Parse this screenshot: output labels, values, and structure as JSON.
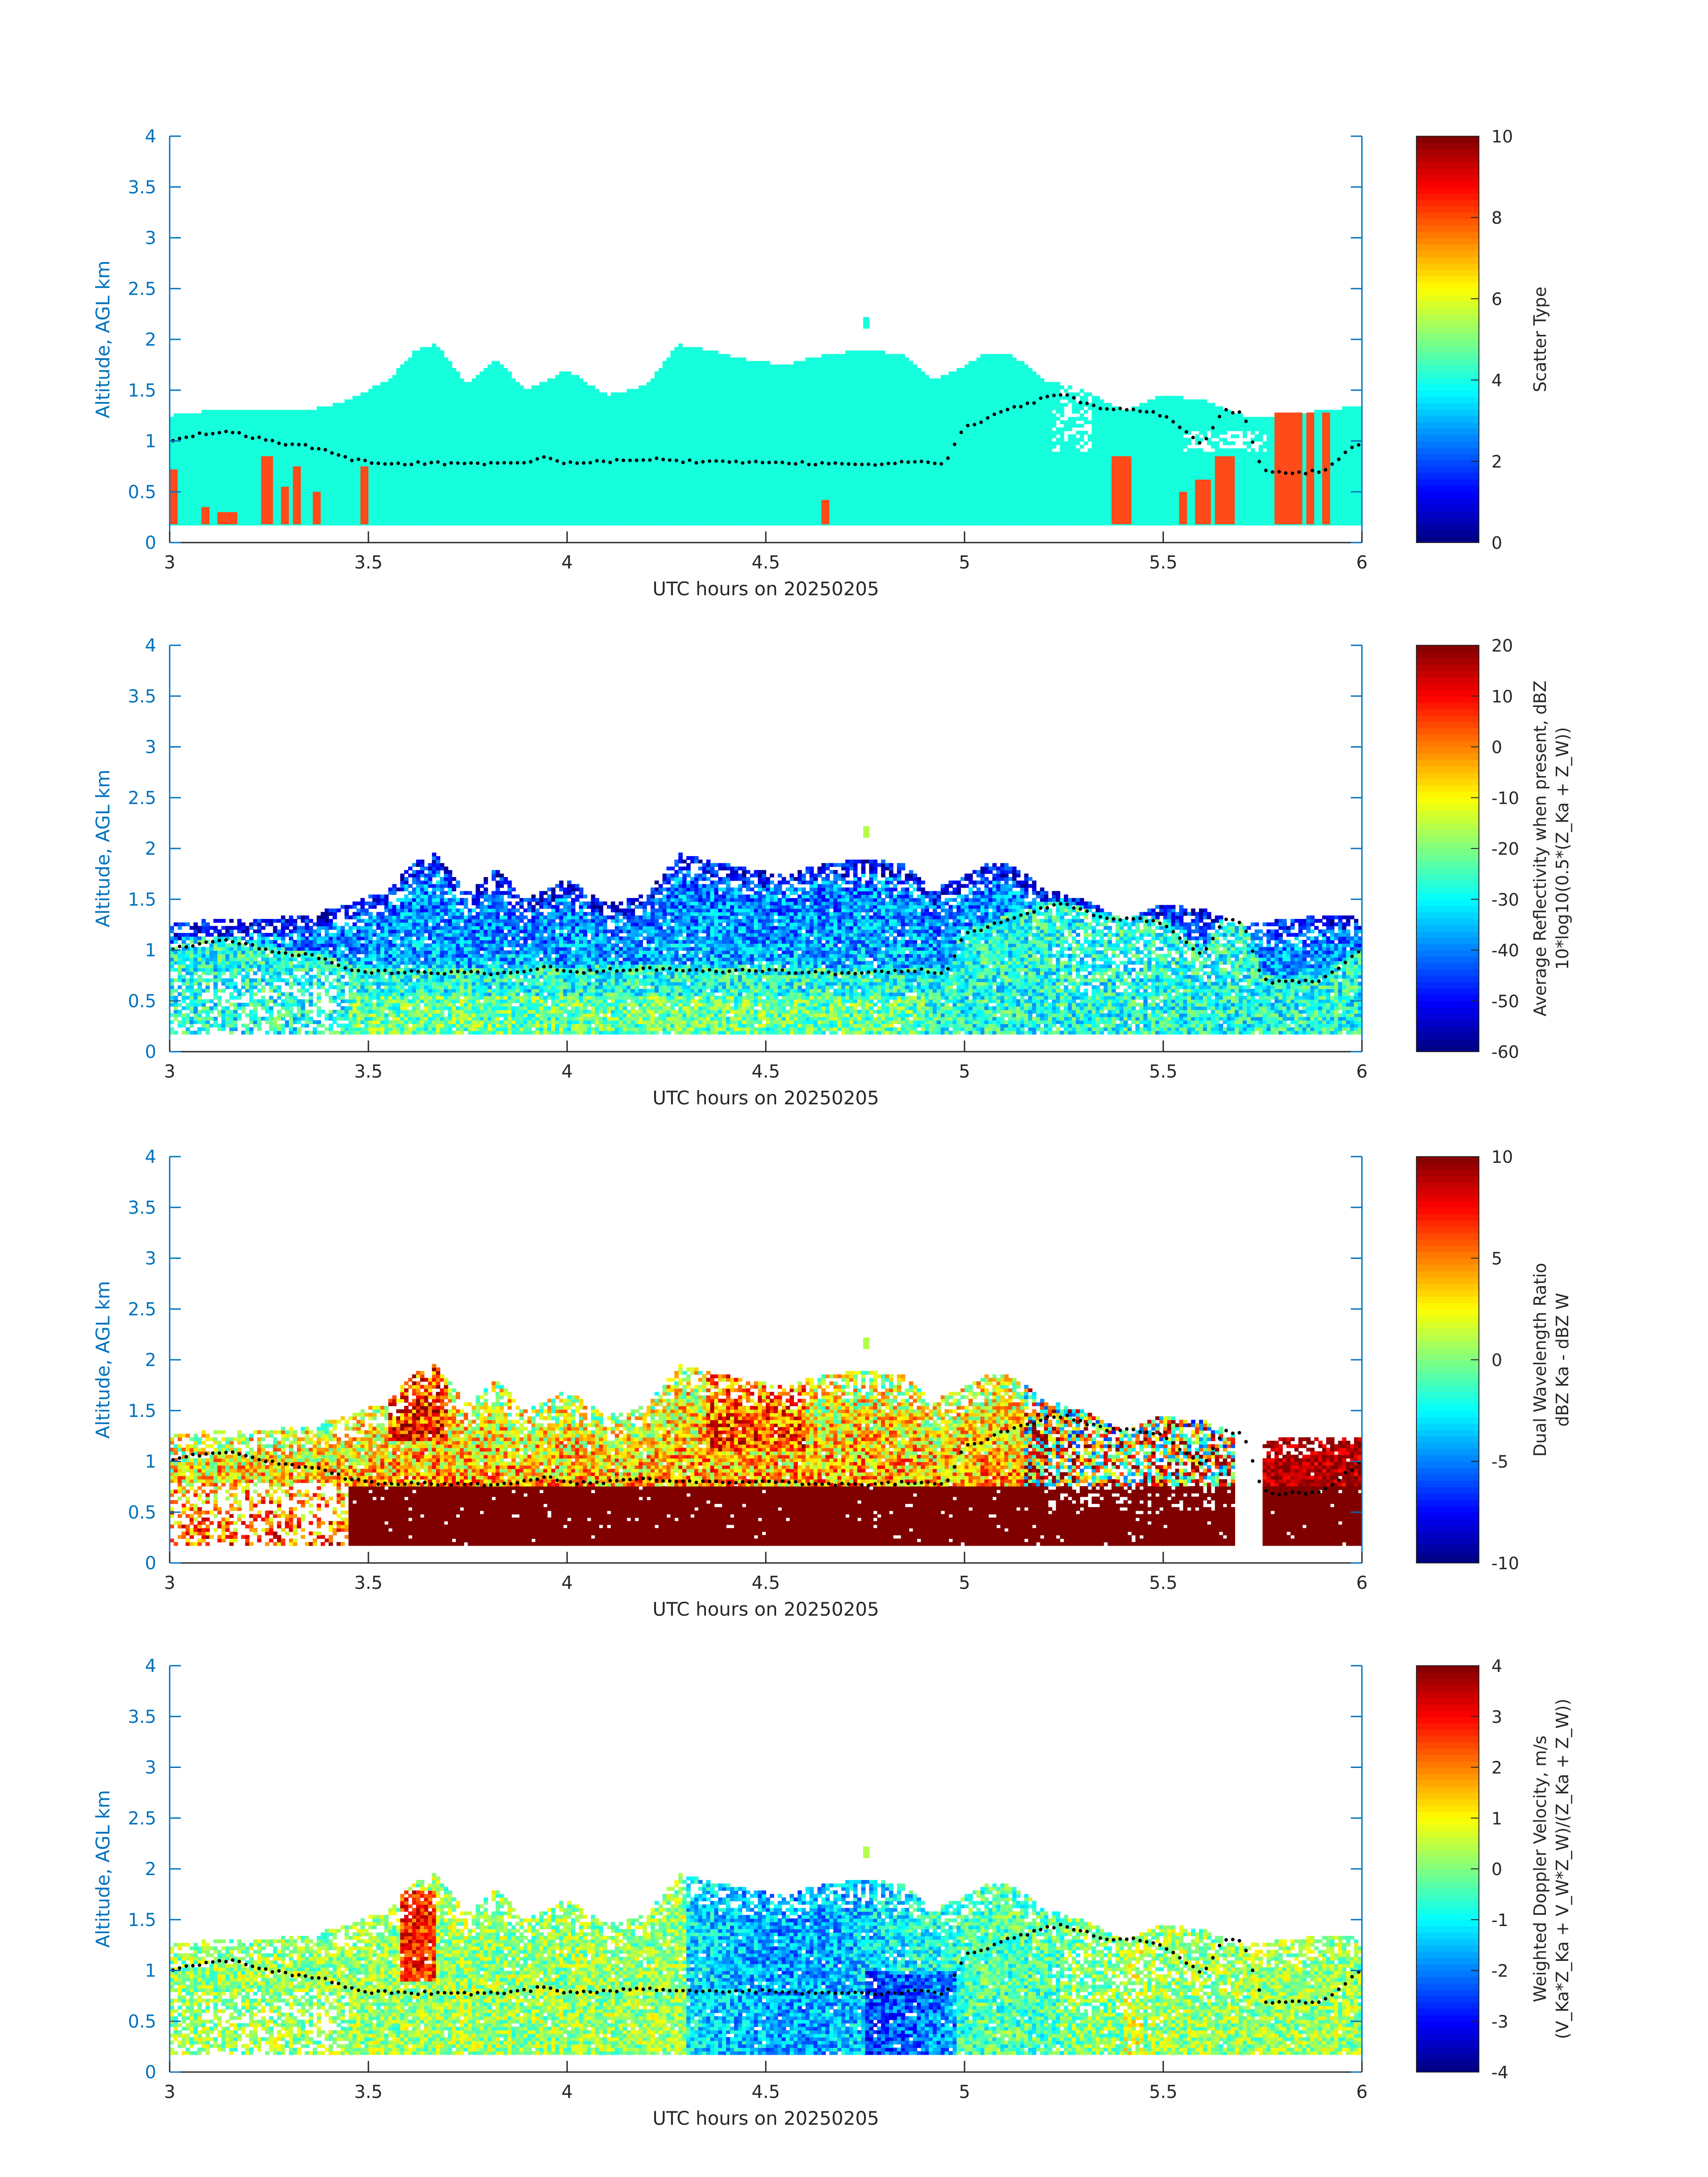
{
  "figure": {
    "common_xlabel": "UTC hours on 20250205",
    "common_ylabel": "Altitude, AGL km",
    "x_ticks": [
      "3",
      "3.5",
      "4",
      "4.5",
      "5",
      "5.5",
      "6"
    ],
    "y_ticks": [
      "0",
      "0.5",
      "1",
      "1.5",
      "2",
      "2.5",
      "3",
      "3.5",
      "4"
    ],
    "axis_color": "#0072bd",
    "dot_color": "#000000"
  },
  "chart_data": [
    {
      "type": "heatmap",
      "xlabel": "UTC hours on 20250205",
      "ylabel": "Altitude, AGL km",
      "xlim": [
        3,
        6
      ],
      "ylim": [
        0,
        4
      ],
      "colorbar_label": "Scatter Type",
      "colorbar_label2": "",
      "colorbar_range": [
        0,
        10
      ],
      "colorbar_ticks": [
        "0",
        "2",
        "4",
        "6",
        "8",
        "10"
      ],
      "colormap": "jet",
      "field": "scatter_type",
      "cloud_top_profile": [
        [
          3.0,
          1.25
        ],
        [
          3.1,
          1.3
        ],
        [
          3.2,
          1.3
        ],
        [
          3.35,
          1.3
        ],
        [
          3.45,
          1.4
        ],
        [
          3.55,
          1.6
        ],
        [
          3.62,
          1.9
        ],
        [
          3.67,
          1.95
        ],
        [
          3.75,
          1.55
        ],
        [
          3.82,
          1.8
        ],
        [
          3.9,
          1.5
        ],
        [
          4.0,
          1.7
        ],
        [
          4.1,
          1.45
        ],
        [
          4.2,
          1.55
        ],
        [
          4.28,
          1.95
        ],
        [
          4.35,
          1.9
        ],
        [
          4.45,
          1.8
        ],
        [
          4.55,
          1.75
        ],
        [
          4.65,
          1.85
        ],
        [
          4.75,
          1.9
        ],
        [
          4.85,
          1.85
        ],
        [
          4.92,
          1.6
        ],
        [
          4.98,
          1.7
        ],
        [
          5.05,
          1.85
        ],
        [
          5.12,
          1.85
        ],
        [
          5.2,
          1.6
        ],
        [
          5.3,
          1.5
        ],
        [
          5.4,
          1.3
        ],
        [
          5.5,
          1.45
        ],
        [
          5.6,
          1.4
        ],
        [
          5.7,
          1.25
        ],
        [
          5.8,
          1.25
        ],
        [
          5.9,
          1.3
        ],
        [
          6.0,
          1.35
        ]
      ],
      "rain_columns": [
        [
          3.0,
          3.02,
          0.72
        ],
        [
          3.08,
          3.1,
          0.35
        ],
        [
          3.12,
          3.17,
          0.3
        ],
        [
          3.23,
          3.26,
          0.85
        ],
        [
          3.28,
          3.3,
          0.55
        ],
        [
          3.31,
          3.33,
          0.75
        ],
        [
          3.36,
          3.38,
          0.5
        ],
        [
          3.48,
          3.5,
          0.75
        ],
        [
          4.64,
          4.66,
          0.42
        ],
        [
          5.37,
          5.42,
          0.85
        ],
        [
          5.54,
          5.56,
          0.5
        ],
        [
          5.58,
          5.62,
          0.62
        ],
        [
          5.63,
          5.68,
          0.85
        ],
        [
          5.78,
          5.85,
          1.28
        ],
        [
          5.86,
          5.88,
          1.28
        ],
        [
          5.9,
          5.92,
          1.28
        ]
      ],
      "pbl_dots": [
        [
          3.0,
          1.0
        ],
        [
          3.05,
          1.05
        ],
        [
          3.1,
          1.08
        ],
        [
          3.15,
          1.1
        ],
        [
          3.2,
          1.05
        ],
        [
          3.25,
          1.0
        ],
        [
          3.3,
          0.96
        ],
        [
          3.35,
          0.95
        ],
        [
          3.4,
          0.9
        ],
        [
          3.45,
          0.82
        ],
        [
          3.5,
          0.79
        ],
        [
          3.6,
          0.78
        ],
        [
          3.7,
          0.78
        ],
        [
          3.8,
          0.77
        ],
        [
          3.9,
          0.8
        ],
        [
          3.95,
          0.85
        ],
        [
          4.0,
          0.78
        ],
        [
          4.1,
          0.8
        ],
        [
          4.2,
          0.82
        ],
        [
          4.3,
          0.8
        ],
        [
          4.4,
          0.79
        ],
        [
          4.5,
          0.8
        ],
        [
          4.6,
          0.78
        ],
        [
          4.7,
          0.77
        ],
        [
          4.8,
          0.78
        ],
        [
          4.9,
          0.8
        ],
        [
          4.95,
          0.76
        ],
        [
          5.0,
          1.15
        ],
        [
          5.05,
          1.2
        ],
        [
          5.1,
          1.3
        ],
        [
          5.15,
          1.35
        ],
        [
          5.2,
          1.42
        ],
        [
          5.25,
          1.45
        ],
        [
          5.3,
          1.38
        ],
        [
          5.35,
          1.32
        ],
        [
          5.45,
          1.3
        ],
        [
          5.5,
          1.25
        ],
        [
          5.6,
          0.95
        ],
        [
          5.65,
          1.3
        ],
        [
          5.7,
          1.28
        ],
        [
          5.75,
          0.7
        ],
        [
          5.8,
          0.68
        ],
        [
          5.9,
          0.7
        ],
        [
          6.0,
          1.0
        ]
      ]
    },
    {
      "type": "heatmap",
      "xlabel": "UTC hours on 20250205",
      "ylabel": "Altitude, AGL km",
      "xlim": [
        3,
        6
      ],
      "ylim": [
        0,
        4
      ],
      "colorbar_label": "Average Reflectivity when present, dBZ",
      "colorbar_label2": "10*log10(0.5*(Z_Ka + Z_W))",
      "colorbar_range": [
        -60,
        20
      ],
      "colorbar_ticks": [
        "-60",
        "-50",
        "-40",
        "-30",
        "-20",
        "-10",
        "0",
        "10",
        "20"
      ],
      "colormap": "jet",
      "field": "reflectivity",
      "cloud_top_profile": [
        [
          3.0,
          1.25
        ],
        [
          3.1,
          1.3
        ],
        [
          3.2,
          1.3
        ],
        [
          3.35,
          1.35
        ],
        [
          3.45,
          1.45
        ],
        [
          3.55,
          1.6
        ],
        [
          3.62,
          1.9
        ],
        [
          3.67,
          1.95
        ],
        [
          3.75,
          1.55
        ],
        [
          3.82,
          1.8
        ],
        [
          3.9,
          1.5
        ],
        [
          4.0,
          1.7
        ],
        [
          4.1,
          1.45
        ],
        [
          4.2,
          1.55
        ],
        [
          4.28,
          1.95
        ],
        [
          4.35,
          1.9
        ],
        [
          4.45,
          1.8
        ],
        [
          4.55,
          1.75
        ],
        [
          4.65,
          1.85
        ],
        [
          4.75,
          1.9
        ],
        [
          4.85,
          1.85
        ],
        [
          4.92,
          1.6
        ],
        [
          4.98,
          1.7
        ],
        [
          5.05,
          1.85
        ],
        [
          5.12,
          1.85
        ],
        [
          5.2,
          1.6
        ],
        [
          5.3,
          1.5
        ],
        [
          5.4,
          1.3
        ],
        [
          5.5,
          1.45
        ],
        [
          5.6,
          1.4
        ],
        [
          5.7,
          1.25
        ],
        [
          5.8,
          1.3
        ],
        [
          5.9,
          1.35
        ],
        [
          6.0,
          1.35
        ]
      ],
      "pbl_dots": [
        [
          3.0,
          1.0
        ],
        [
          3.05,
          1.05
        ],
        [
          3.1,
          1.08
        ],
        [
          3.15,
          1.1
        ],
        [
          3.2,
          1.05
        ],
        [
          3.25,
          1.0
        ],
        [
          3.3,
          0.96
        ],
        [
          3.35,
          0.95
        ],
        [
          3.4,
          0.9
        ],
        [
          3.45,
          0.82
        ],
        [
          3.5,
          0.79
        ],
        [
          3.6,
          0.78
        ],
        [
          3.7,
          0.78
        ],
        [
          3.8,
          0.77
        ],
        [
          3.9,
          0.8
        ],
        [
          3.95,
          0.85
        ],
        [
          4.0,
          0.78
        ],
        [
          4.1,
          0.8
        ],
        [
          4.2,
          0.82
        ],
        [
          4.3,
          0.8
        ],
        [
          4.4,
          0.79
        ],
        [
          4.5,
          0.8
        ],
        [
          4.6,
          0.78
        ],
        [
          4.7,
          0.77
        ],
        [
          4.8,
          0.78
        ],
        [
          4.9,
          0.8
        ],
        [
          4.95,
          0.76
        ],
        [
          5.0,
          1.15
        ],
        [
          5.05,
          1.2
        ],
        [
          5.1,
          1.3
        ],
        [
          5.15,
          1.35
        ],
        [
          5.2,
          1.42
        ],
        [
          5.25,
          1.45
        ],
        [
          5.3,
          1.38
        ],
        [
          5.35,
          1.32
        ],
        [
          5.45,
          1.3
        ],
        [
          5.5,
          1.25
        ],
        [
          5.6,
          0.95
        ],
        [
          5.65,
          1.3
        ],
        [
          5.7,
          1.28
        ],
        [
          5.75,
          0.7
        ],
        [
          5.8,
          0.68
        ],
        [
          5.9,
          0.7
        ],
        [
          6.0,
          1.0
        ]
      ]
    },
    {
      "type": "heatmap",
      "xlabel": "UTC hours on 20250205",
      "ylabel": "Altitude, AGL km",
      "xlim": [
        3,
        6
      ],
      "ylim": [
        0,
        4
      ],
      "colorbar_label": "Dual Wavelength Ratio",
      "colorbar_label2": "dBZ Ka - dBZ W",
      "colorbar_range": [
        -10,
        10
      ],
      "colorbar_ticks": [
        "-10",
        "-5",
        "0",
        "5",
        "10"
      ],
      "colormap": "jet",
      "field": "dwr",
      "cloud_top_profile": [
        [
          3.0,
          1.25
        ],
        [
          3.1,
          1.3
        ],
        [
          3.2,
          1.3
        ],
        [
          3.35,
          1.35
        ],
        [
          3.45,
          1.45
        ],
        [
          3.55,
          1.6
        ],
        [
          3.62,
          1.9
        ],
        [
          3.67,
          1.95
        ],
        [
          3.75,
          1.55
        ],
        [
          3.82,
          1.8
        ],
        [
          3.9,
          1.5
        ],
        [
          4.0,
          1.7
        ],
        [
          4.1,
          1.45
        ],
        [
          4.2,
          1.55
        ],
        [
          4.28,
          1.95
        ],
        [
          4.35,
          1.9
        ],
        [
          4.45,
          1.8
        ],
        [
          4.55,
          1.75
        ],
        [
          4.65,
          1.85
        ],
        [
          4.75,
          1.9
        ],
        [
          4.85,
          1.85
        ],
        [
          4.92,
          1.6
        ],
        [
          4.98,
          1.7
        ],
        [
          5.05,
          1.85
        ],
        [
          5.12,
          1.85
        ],
        [
          5.2,
          1.6
        ],
        [
          5.3,
          1.5
        ],
        [
          5.4,
          1.3
        ],
        [
          5.5,
          1.45
        ],
        [
          5.6,
          1.4
        ],
        [
          5.7,
          1.25
        ],
        [
          5.8,
          1.3
        ],
        [
          5.9,
          1.35
        ],
        [
          6.0,
          1.45
        ]
      ],
      "pbl_dots": [
        [
          3.0,
          1.0
        ],
        [
          3.05,
          1.05
        ],
        [
          3.1,
          1.08
        ],
        [
          3.15,
          1.1
        ],
        [
          3.2,
          1.05
        ],
        [
          3.25,
          1.0
        ],
        [
          3.3,
          0.96
        ],
        [
          3.35,
          0.95
        ],
        [
          3.4,
          0.9
        ],
        [
          3.45,
          0.82
        ],
        [
          3.5,
          0.79
        ],
        [
          3.6,
          0.78
        ],
        [
          3.7,
          0.78
        ],
        [
          3.8,
          0.77
        ],
        [
          3.9,
          0.8
        ],
        [
          3.95,
          0.85
        ],
        [
          4.0,
          0.78
        ],
        [
          4.1,
          0.8
        ],
        [
          4.2,
          0.82
        ],
        [
          4.3,
          0.8
        ],
        [
          4.4,
          0.79
        ],
        [
          4.5,
          0.8
        ],
        [
          4.6,
          0.78
        ],
        [
          4.7,
          0.77
        ],
        [
          4.8,
          0.78
        ],
        [
          4.9,
          0.8
        ],
        [
          4.95,
          0.76
        ],
        [
          5.0,
          1.15
        ],
        [
          5.05,
          1.2
        ],
        [
          5.1,
          1.3
        ],
        [
          5.15,
          1.35
        ],
        [
          5.2,
          1.42
        ],
        [
          5.25,
          1.45
        ],
        [
          5.3,
          1.38
        ],
        [
          5.35,
          1.32
        ],
        [
          5.45,
          1.3
        ],
        [
          5.5,
          1.25
        ],
        [
          5.6,
          0.95
        ],
        [
          5.65,
          1.3
        ],
        [
          5.7,
          1.28
        ],
        [
          5.75,
          0.7
        ],
        [
          5.8,
          0.68
        ],
        [
          5.9,
          0.7
        ],
        [
          6.0,
          1.0
        ]
      ]
    },
    {
      "type": "heatmap",
      "xlabel": "UTC hours on 20250205",
      "ylabel": "Altitude, AGL km",
      "xlim": [
        3,
        6
      ],
      "ylim": [
        0,
        4
      ],
      "colorbar_label": "Weighted Doppler Velocity, m/s",
      "colorbar_label2": "(V_Ka*Z_Ka + V_W*Z_W)/(Z_Ka + Z_W))",
      "colorbar_range": [
        -4,
        4
      ],
      "colorbar_ticks": [
        "-4",
        "-3",
        "-2",
        "-1",
        "0",
        "1",
        "2",
        "3",
        "4"
      ],
      "colormap": "jet",
      "field": "velocity",
      "cloud_top_profile": [
        [
          3.0,
          1.25
        ],
        [
          3.1,
          1.3
        ],
        [
          3.2,
          1.3
        ],
        [
          3.35,
          1.35
        ],
        [
          3.45,
          1.45
        ],
        [
          3.55,
          1.6
        ],
        [
          3.62,
          1.9
        ],
        [
          3.67,
          1.95
        ],
        [
          3.75,
          1.55
        ],
        [
          3.82,
          1.8
        ],
        [
          3.9,
          1.5
        ],
        [
          4.0,
          1.7
        ],
        [
          4.1,
          1.45
        ],
        [
          4.2,
          1.55
        ],
        [
          4.28,
          1.95
        ],
        [
          4.35,
          1.9
        ],
        [
          4.45,
          1.8
        ],
        [
          4.55,
          1.75
        ],
        [
          4.65,
          1.85
        ],
        [
          4.75,
          1.9
        ],
        [
          4.85,
          1.85
        ],
        [
          4.92,
          1.6
        ],
        [
          4.98,
          1.7
        ],
        [
          5.05,
          1.85
        ],
        [
          5.12,
          1.85
        ],
        [
          5.2,
          1.6
        ],
        [
          5.3,
          1.5
        ],
        [
          5.4,
          1.3
        ],
        [
          5.5,
          1.45
        ],
        [
          5.6,
          1.4
        ],
        [
          5.7,
          1.25
        ],
        [
          5.8,
          1.3
        ],
        [
          5.9,
          1.35
        ],
        [
          6.0,
          1.35
        ]
      ],
      "pbl_dots": [
        [
          3.0,
          1.0
        ],
        [
          3.05,
          1.05
        ],
        [
          3.1,
          1.08
        ],
        [
          3.15,
          1.1
        ],
        [
          3.2,
          1.05
        ],
        [
          3.25,
          1.0
        ],
        [
          3.3,
          0.96
        ],
        [
          3.35,
          0.95
        ],
        [
          3.4,
          0.9
        ],
        [
          3.45,
          0.82
        ],
        [
          3.5,
          0.79
        ],
        [
          3.6,
          0.78
        ],
        [
          3.7,
          0.78
        ],
        [
          3.8,
          0.77
        ],
        [
          3.9,
          0.8
        ],
        [
          3.95,
          0.85
        ],
        [
          4.0,
          0.78
        ],
        [
          4.1,
          0.8
        ],
        [
          4.2,
          0.82
        ],
        [
          4.3,
          0.8
        ],
        [
          4.4,
          0.79
        ],
        [
          4.5,
          0.8
        ],
        [
          4.6,
          0.78
        ],
        [
          4.7,
          0.77
        ],
        [
          4.8,
          0.78
        ],
        [
          4.9,
          0.8
        ],
        [
          4.95,
          0.76
        ],
        [
          5.0,
          1.15
        ],
        [
          5.05,
          1.2
        ],
        [
          5.1,
          1.3
        ],
        [
          5.15,
          1.35
        ],
        [
          5.2,
          1.42
        ],
        [
          5.25,
          1.45
        ],
        [
          5.3,
          1.38
        ],
        [
          5.35,
          1.32
        ],
        [
          5.45,
          1.3
        ],
        [
          5.5,
          1.25
        ],
        [
          5.6,
          0.95
        ],
        [
          5.65,
          1.3
        ],
        [
          5.7,
          1.28
        ],
        [
          5.75,
          0.7
        ],
        [
          5.8,
          0.68
        ],
        [
          5.9,
          0.7
        ],
        [
          6.0,
          1.0
        ]
      ]
    }
  ]
}
